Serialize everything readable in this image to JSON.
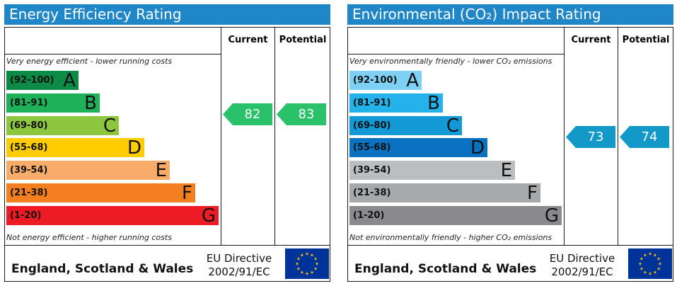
{
  "chart_data": [
    {
      "type": "bar",
      "title": "Energy Efficiency Rating",
      "columns": [
        "Current",
        "Potential"
      ],
      "note_top": "Very energy efficient - lower running costs",
      "note_bottom": "Not energy efficient - higher running costs",
      "bands": [
        {
          "range": "(92-100)",
          "letter": "A",
          "color": "#0d8a46",
          "text_color": "#111111",
          "length": 0.34
        },
        {
          "range": "(81-91)",
          "letter": "B",
          "color": "#1eb15a",
          "text_color": "#111111",
          "length": 0.44
        },
        {
          "range": "(69-80)",
          "letter": "C",
          "color": "#8dc63f",
          "text_color": "#111111",
          "length": 0.53
        },
        {
          "range": "(55-68)",
          "letter": "D",
          "color": "#ffcc00",
          "text_color": "#111111",
          "length": 0.65
        },
        {
          "range": "(39-54)",
          "letter": "E",
          "color": "#f9ac6a",
          "text_color": "#111111",
          "length": 0.77
        },
        {
          "range": "(21-38)",
          "letter": "F",
          "color": "#f47f20",
          "text_color": "#111111",
          "length": 0.89
        },
        {
          "range": "(1-20)",
          "letter": "G",
          "color": "#ed1c24",
          "text_color": "#111111",
          "length": 1.0
        }
      ],
      "current": {
        "value": "82",
        "band_index": 1,
        "color": "#2ac16b"
      },
      "potential": {
        "value": "83",
        "band_index": 1,
        "color": "#2ac16b"
      },
      "region": "England, Scotland & Wales",
      "directive_line1": "EU Directive",
      "directive_line2": "2002/91/EC"
    },
    {
      "type": "bar",
      "title": "Environmental (CO₂) Impact Rating",
      "columns": [
        "Current",
        "Potential"
      ],
      "note_top": "Very environmentally friendly - lower CO₂ emissions",
      "note_bottom": "Not environmentally friendly - higher CO₂ emissions",
      "bands": [
        {
          "range": "(92-100)",
          "letter": "A",
          "color": "#7fd0f5",
          "text_color": "#111111",
          "length": 0.34
        },
        {
          "range": "(81-91)",
          "letter": "B",
          "color": "#23b3ea",
          "text_color": "#111111",
          "length": 0.44
        },
        {
          "range": "(69-80)",
          "letter": "C",
          "color": "#1399d6",
          "text_color": "#111111",
          "length": 0.53
        },
        {
          "range": "(55-68)",
          "letter": "D",
          "color": "#0b72c1",
          "text_color": "#111111",
          "length": 0.65
        },
        {
          "range": "(39-54)",
          "letter": "E",
          "color": "#bcbdbf",
          "text_color": "#111111",
          "length": 0.78
        },
        {
          "range": "(21-38)",
          "letter": "F",
          "color": "#a7a8aa",
          "text_color": "#111111",
          "length": 0.9
        },
        {
          "range": "(1-20)",
          "letter": "G",
          "color": "#8a8a8c",
          "text_color": "#111111",
          "length": 1.0
        }
      ],
      "current": {
        "value": "73",
        "band_index": 2,
        "color": "#1399c8"
      },
      "potential": {
        "value": "74",
        "band_index": 2,
        "color": "#1399c8"
      },
      "region": "England, Scotland & Wales",
      "directive_line1": "EU Directive",
      "directive_line2": "2002/91/EC"
    }
  ],
  "colors": {
    "title_bar": "#1f87c8",
    "eu_flag_blue": "#003399",
    "eu_star": "#ffcc00"
  },
  "icons": {
    "flag": "eu-flag-icon"
  }
}
